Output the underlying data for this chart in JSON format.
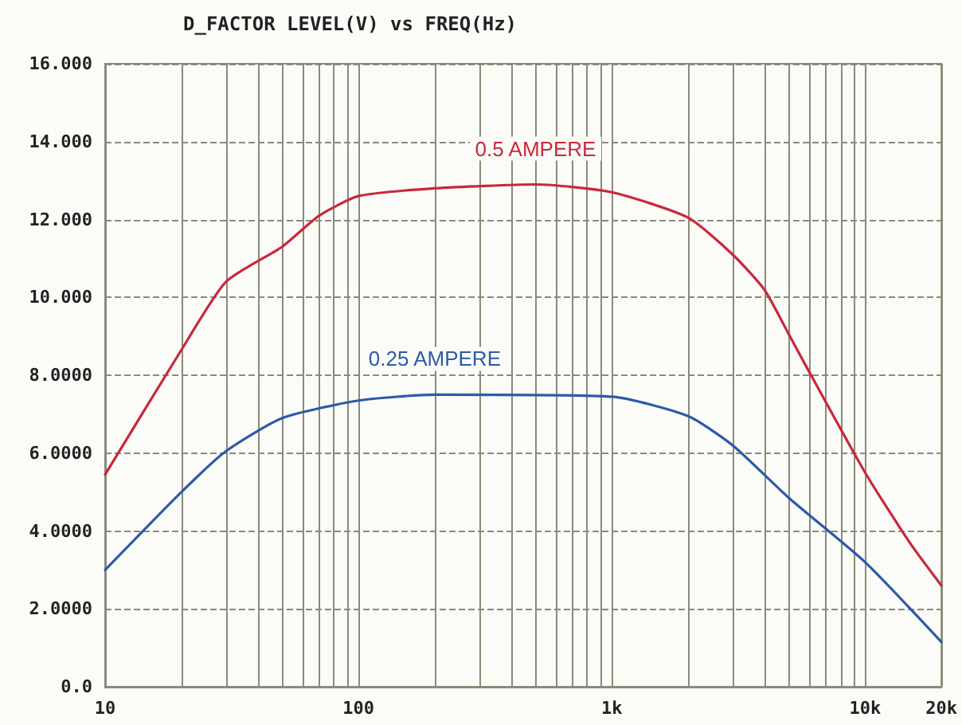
{
  "chart_data": {
    "type": "line",
    "title": "D_FACTOR LEVEL(V) vs FREQ(Hz)",
    "x": [
      10,
      20,
      30,
      50,
      70,
      100,
      200,
      500,
      1000,
      2000,
      3000,
      4000,
      5000,
      6000,
      10000,
      15000,
      20000
    ],
    "series": [
      {
        "name": "0.5 AMPERE",
        "color": "#c8283c",
        "values": [
          5.45,
          8.65,
          10.4,
          11.3,
          12.1,
          12.6,
          12.8,
          12.9,
          12.7,
          12.05,
          11.1,
          10.2,
          9.05,
          8.1,
          5.5,
          3.7,
          2.6
        ]
      },
      {
        "name": "0.25 AMPERE",
        "color": "#2d5aa8",
        "x": [
          10,
          20,
          30,
          50,
          100,
          200,
          1000,
          2000,
          3000,
          5000,
          10000,
          20000
        ],
        "values": [
          3.0,
          5.0,
          6.05,
          6.9,
          7.35,
          7.5,
          7.45,
          6.95,
          6.2,
          4.85,
          3.2,
          1.15
        ]
      }
    ],
    "log": "x",
    "grid": true,
    "legend": false,
    "marker": "none",
    "line_style": "solid",
    "xlim": [
      10,
      20000
    ],
    "ylim": [
      0,
      16
    ],
    "xticks": [
      10,
      {
        "value": 20,
        "label": null
      },
      {
        "value": 30,
        "label": null
      },
      {
        "value": 40,
        "label": null
      },
      {
        "value": 50,
        "label": null
      },
      {
        "value": 60,
        "label": null
      },
      {
        "value": 70,
        "label": null
      },
      {
        "value": 80,
        "label": null
      },
      {
        "value": 90,
        "label": null
      },
      100,
      {
        "value": 200,
        "label": null
      },
      {
        "value": 300,
        "label": null
      },
      {
        "value": 400,
        "label": null
      },
      {
        "value": 500,
        "label": null
      },
      {
        "value": 600,
        "label": null
      },
      {
        "value": 700,
        "label": null
      },
      {
        "value": 800,
        "label": null
      },
      {
        "value": 900,
        "label": null
      },
      {
        "value": 1000,
        "label": "1k"
      },
      {
        "value": 2000,
        "label": null
      },
      {
        "value": 3000,
        "label": null
      },
      {
        "value": 4000,
        "label": null
      },
      {
        "value": 5000,
        "label": null
      },
      {
        "value": 6000,
        "label": null
      },
      {
        "value": 7000,
        "label": null
      },
      {
        "value": 8000,
        "label": null
      },
      {
        "value": 9000,
        "label": null
      },
      {
        "value": 10000,
        "label": "10k"
      },
      {
        "value": 20000,
        "label": "20k"
      }
    ],
    "yticks": [
      {
        "value": 0,
        "label": "0.0"
      },
      {
        "value": 2,
        "label": "2.0000"
      },
      {
        "value": 4,
        "label": "4.0000"
      },
      {
        "value": 6,
        "label": "6.0000"
      },
      {
        "value": 8,
        "label": "8.0000"
      },
      {
        "value": 10,
        "label": "10.000"
      },
      {
        "value": 12,
        "label": "12.000"
      },
      {
        "value": 14,
        "label": "14.000"
      },
      {
        "value": 16,
        "label": "16.000"
      }
    ]
  }
}
